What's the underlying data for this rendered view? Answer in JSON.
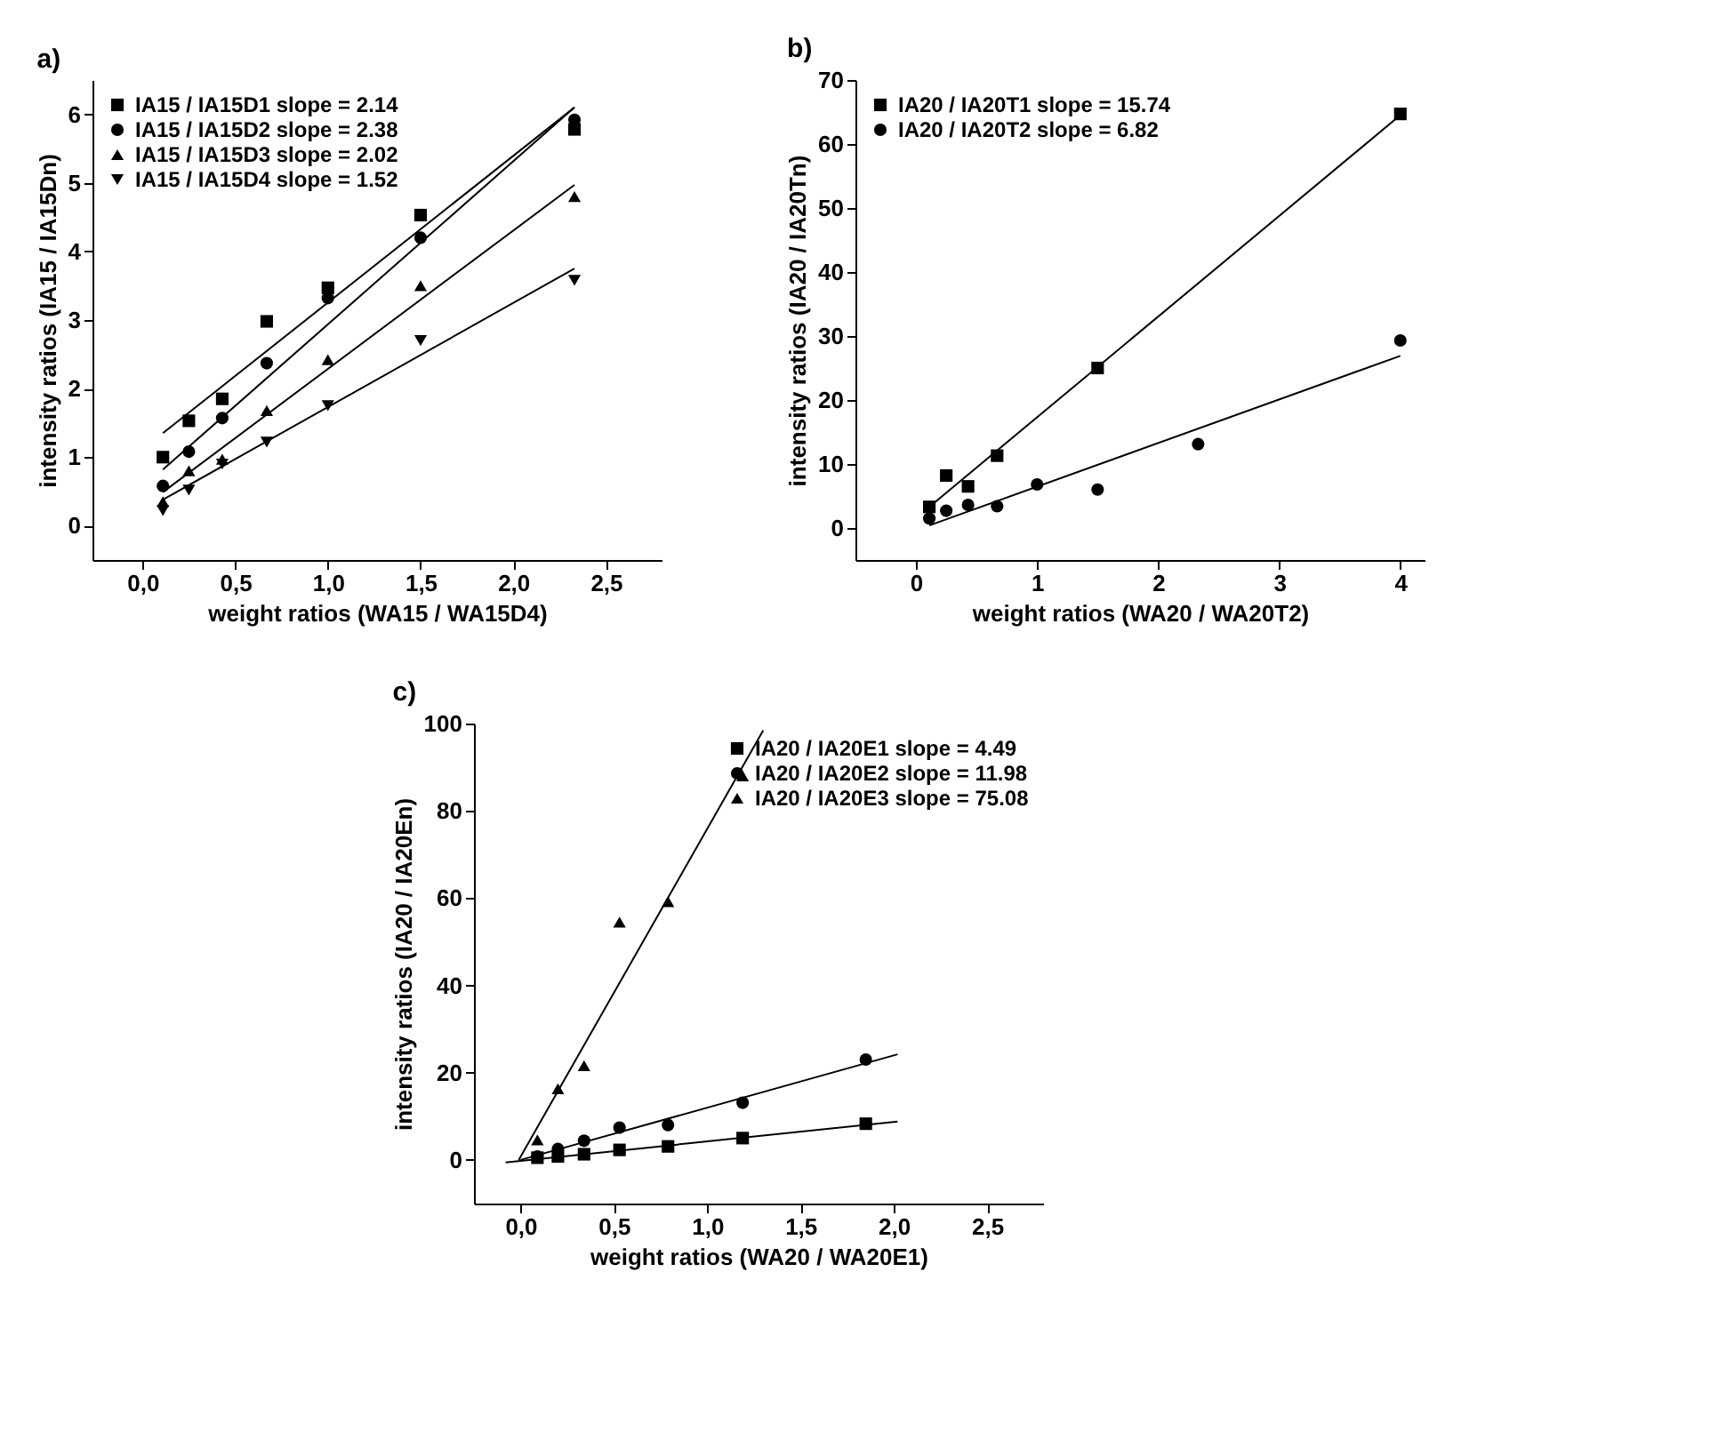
{
  "chart_data": [
    {
      "type": "scatter",
      "title": "a)",
      "xlabel": "weight ratios (WA15 / WA15D4)",
      "ylabel": "intensity ratios (IA15 / IA15Dn)",
      "legend": "top left",
      "grid": false,
      "xlim": [
        -0.27,
        2.8
      ],
      "ylim": [
        -0.5,
        6.5
      ],
      "xticks": [
        {
          "value": 0,
          "label": "0,0"
        },
        {
          "value": 0.5,
          "label": "0,5"
        },
        {
          "value": 1,
          "label": "1,0"
        },
        {
          "value": 1.5,
          "label": "1,5"
        },
        {
          "value": 2,
          "label": "2,0"
        },
        {
          "value": 2.5,
          "label": "2,5"
        }
      ],
      "yticks": [
        0,
        1,
        2,
        3,
        4,
        5,
        6
      ],
      "series": [
        {
          "name": "IA15 / IA15D1 slope = 2.14",
          "marker": "square",
          "color": "#000000",
          "x": [
            0.11,
            0.25,
            0.43,
            0.67,
            1.0,
            1.5,
            2.33
          ],
          "values": [
            1.0,
            1.53,
            1.85,
            2.98,
            3.47,
            4.53,
            5.78
          ]
        },
        {
          "name": "IA15 / IA15D2 slope = 2.38",
          "marker": "circle",
          "color": "#000000",
          "x": [
            0.11,
            0.25,
            0.43,
            0.67,
            1.0,
            1.5,
            2.33
          ],
          "values": [
            0.58,
            1.08,
            1.57,
            2.37,
            3.32,
            4.2,
            5.92
          ]
        },
        {
          "name": "IA15 / IA15D3 slope = 2.02",
          "marker": "triangle",
          "color": "#000000",
          "x": [
            0.11,
            0.25,
            0.43,
            0.67,
            1.0,
            1.5,
            2.33
          ],
          "values": [
            0.35,
            0.8,
            0.97,
            1.68,
            2.42,
            3.5,
            4.8
          ]
        },
        {
          "name": "IA15 / IA15D4 slope = 1.52",
          "marker": "triangle-down",
          "color": "#000000",
          "x": [
            0.11,
            0.25,
            0.43,
            0.67,
            1.0,
            1.5,
            2.33
          ],
          "values": [
            0.22,
            0.52,
            0.9,
            1.22,
            1.75,
            2.7,
            3.58
          ]
        },
        {
          "type": "line",
          "color": "#000000",
          "x": [
            0.11,
            2.33
          ],
          "values": [
            1.35,
            6.1
          ]
        },
        {
          "type": "line",
          "color": "#000000",
          "x": [
            0.11,
            2.33
          ],
          "values": [
            0.82,
            6.1
          ]
        },
        {
          "type": "line",
          "color": "#000000",
          "x": [
            0.11,
            2.33
          ],
          "values": [
            0.49,
            4.97
          ]
        },
        {
          "type": "line",
          "color": "#000000",
          "x": [
            0.11,
            2.33
          ],
          "values": [
            0.38,
            3.75
          ]
        }
      ]
    },
    {
      "type": "scatter",
      "title": "b)",
      "xlabel": "weight ratios (WA20 / WA20T2)",
      "ylabel": "intensity ratios (IA20 / IA20Tn)",
      "legend": "top left",
      "grid": false,
      "xlim": [
        -0.5,
        4.2
      ],
      "ylim": [
        -5,
        70
      ],
      "xticks": [
        0,
        1,
        2,
        3,
        4
      ],
      "yticks": [
        0,
        10,
        20,
        30,
        40,
        50,
        60,
        70
      ],
      "series": [
        {
          "name": "IA20 / IA20T1 slope = 15.74",
          "marker": "square",
          "color": "#000000",
          "x": [
            0.11,
            0.25,
            0.43,
            0.67,
            1.5,
            4.0
          ],
          "values": [
            3.3,
            8.2,
            6.5,
            11.3,
            25.0,
            64.7
          ]
        },
        {
          "name": "IA20 / IA20T2 slope = 6.82",
          "marker": "circle",
          "color": "#000000",
          "x": [
            0.11,
            0.25,
            0.43,
            0.67,
            1.0,
            1.5,
            2.33,
            4.0
          ],
          "values": [
            1.5,
            2.7,
            3.6,
            3.4,
            6.8,
            6.0,
            13.1,
            29.3
          ]
        },
        {
          "type": "line",
          "color": "#000000",
          "x": [
            0.11,
            4.0
          ],
          "values": [
            3.3,
            64.5
          ]
        },
        {
          "type": "line",
          "color": "#000000",
          "x": [
            0.11,
            4.0
          ],
          "values": [
            0.4,
            26.9
          ]
        }
      ]
    },
    {
      "type": "scatter",
      "title": "c)",
      "xlabel": "weight ratios (WA20 / WA20E1)",
      "ylabel": "intensity ratios (IA20 / IA20En)",
      "legend": "top right",
      "grid": false,
      "xlim": [
        -0.25,
        2.8
      ],
      "ylim": [
        -10,
        100
      ],
      "xticks": [
        {
          "value": 0,
          "label": "0,0"
        },
        {
          "value": 0.5,
          "label": "0,5"
        },
        {
          "value": 1,
          "label": "1,0"
        },
        {
          "value": 1.5,
          "label": "1,5"
        },
        {
          "value": 2,
          "label": "2,0"
        },
        {
          "value": 2.5,
          "label": "2,5"
        }
      ],
      "yticks": [
        0,
        20,
        40,
        60,
        80,
        100
      ],
      "series": [
        {
          "name": "IA20 / IA20E1 slope = 4.49",
          "marker": "square",
          "color": "#000000",
          "x": [
            0.09,
            0.2,
            0.34,
            0.53,
            0.79,
            1.19,
            1.85
          ],
          "values": [
            0.5,
            0.8,
            1.3,
            2.3,
            3.1,
            5.0,
            8.3
          ]
        },
        {
          "name": "IA20 / IA20E2 slope = 11.98",
          "marker": "circle",
          "color": "#000000",
          "x": [
            0.09,
            0.2,
            0.34,
            0.53,
            0.79,
            1.19,
            1.85
          ],
          "values": [
            0.8,
            2.5,
            4.4,
            7.4,
            8.0,
            13.1,
            23.0
          ]
        },
        {
          "name": "IA20 / IA20E3 slope = 75.08",
          "marker": "triangle",
          "color": "#000000",
          "x": [
            0.09,
            0.2,
            0.34,
            0.53,
            0.79,
            1.19
          ],
          "values": [
            4.6,
            16.3,
            21.6,
            54.5,
            59.2,
            88.0
          ]
        },
        {
          "type": "line",
          "color": "#000000",
          "x": [
            -0.08,
            2.02
          ],
          "values": [
            -0.6,
            8.8
          ]
        },
        {
          "type": "line",
          "color": "#000000",
          "x": [
            0.0,
            2.02
          ],
          "values": [
            0.0,
            24.2
          ]
        },
        {
          "type": "line",
          "color": "#000000",
          "x": [
            -0.01,
            1.3
          ],
          "values": [
            0.0,
            98.4
          ]
        }
      ]
    }
  ]
}
